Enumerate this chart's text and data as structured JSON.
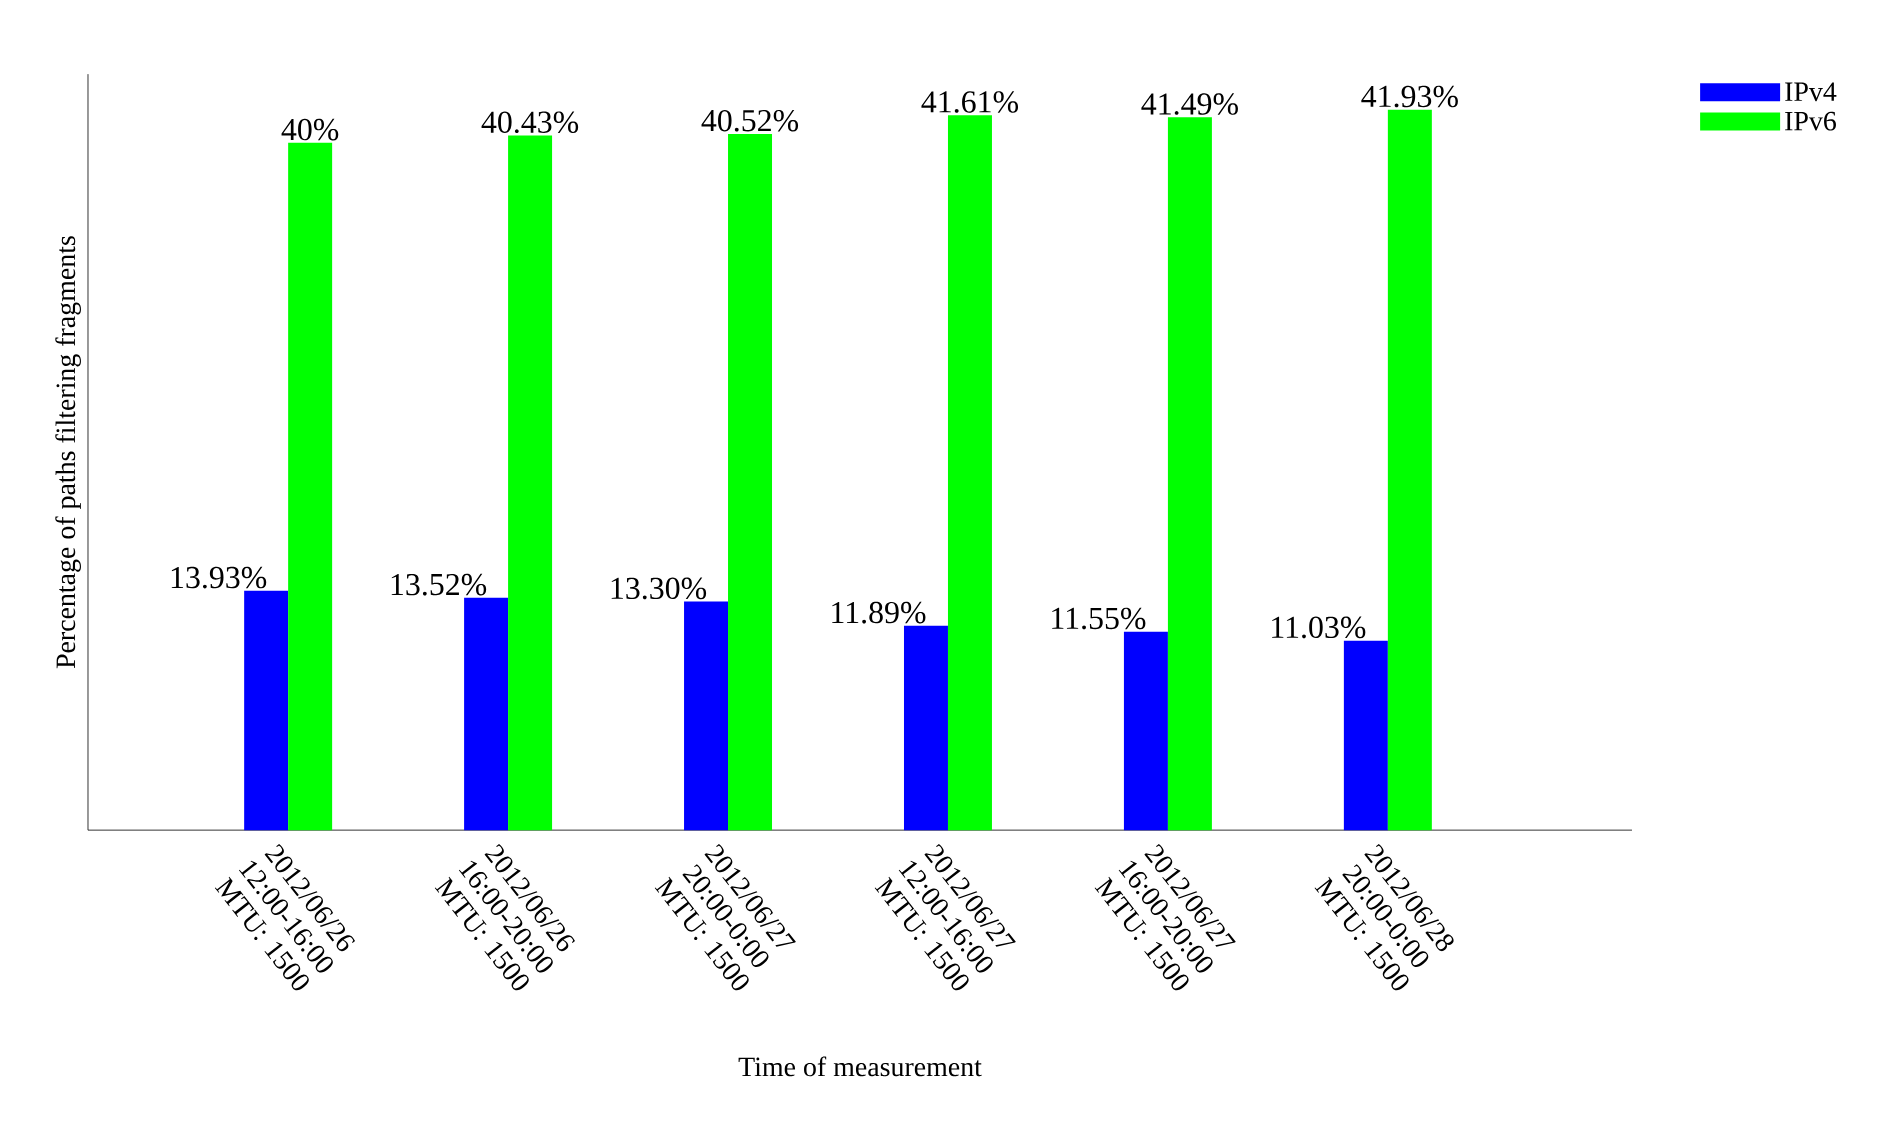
{
  "chart_data": {
    "type": "bar",
    "xlabel": "Time of measurement",
    "ylabel": "Percentage of paths filtering fragments",
    "categories": [
      "2012/06/26 12:00-16:00 MTU: 1500",
      "2012/06/26 16:00-20:00 MTU: 1500",
      "2012/06/27 20:00-0:00 MTU: 1500",
      "2012/06/27 12:00-16:00 MTU: 1500",
      "2012/06/27 16:00-20:00 MTU: 1500",
      "2012/06/28 20:00-0:00 MTU: 1500"
    ],
    "series": [
      {
        "name": "IPv4",
        "color": "#0000ff",
        "values": [
          13.93,
          13.52,
          13.3,
          11.89,
          11.55,
          11.03
        ],
        "value_labels": [
          "13.93%",
          "13.52%",
          "13.30%",
          "11.89%",
          "11.55%",
          "11.03%"
        ]
      },
      {
        "name": "IPv6",
        "color": "#00ff00",
        "values": [
          40,
          40.43,
          40.52,
          41.61,
          41.49,
          41.93
        ],
        "value_labels": [
          "40%",
          "40.43%",
          "40.52%",
          "41.61%",
          "41.49%",
          "41.93%"
        ]
      }
    ],
    "ylim": [
      0,
      44
    ],
    "legend": "top right"
  }
}
